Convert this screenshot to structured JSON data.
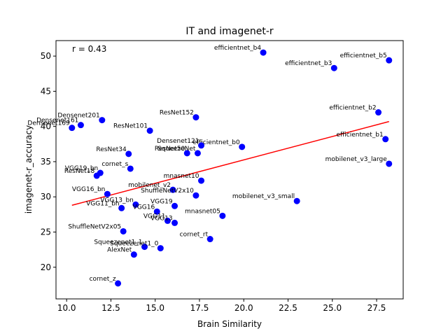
{
  "chart_data": {
    "type": "scatter",
    "title": "IT and imagenet-r",
    "xlabel": "Brain Similarity",
    "ylabel": "imagenet-r_accuracy",
    "annotation": "r = 0.43",
    "xlim": [
      9.4,
      29.0
    ],
    "ylim": [
      15.5,
      52.2
    ],
    "xticks": [
      10.0,
      12.5,
      15.0,
      17.5,
      20.0,
      22.5,
      25.0,
      27.5
    ],
    "yticks": [
      20,
      25,
      30,
      35,
      40,
      45,
      50
    ],
    "grid": false,
    "point_color": "#0000ff",
    "line_color": "#ff0000",
    "fit_line": {
      "x": [
        10.3,
        28.2
      ],
      "y": [
        28.8,
        40.7
      ]
    },
    "points": [
      {
        "label": "efficientnet_b4",
        "x": 21.1,
        "y": 50.5
      },
      {
        "label": "efficientnet_b5",
        "x": 28.2,
        "y": 49.4
      },
      {
        "label": "efficientnet_b3",
        "x": 25.1,
        "y": 48.3
      },
      {
        "label": "efficientnet_b2",
        "x": 27.6,
        "y": 42.0
      },
      {
        "label": "efficientnet_b1",
        "x": 28.0,
        "y": 38.2
      },
      {
        "label": "efficientnet_b0",
        "x": 19.9,
        "y": 37.1
      },
      {
        "label": "mobilenet_v3_large",
        "x": 28.2,
        "y": 34.7
      },
      {
        "label": "mobilenet_v3_small",
        "x": 23.0,
        "y": 29.4
      },
      {
        "label": "mnasnet05",
        "x": 18.8,
        "y": 27.3
      },
      {
        "label": "ResNet152",
        "x": 17.3,
        "y": 41.3
      },
      {
        "label": "Densenet201",
        "x": 12.0,
        "y": 40.9
      },
      {
        "label": "Densenet161",
        "x": 10.8,
        "y": 40.2
      },
      {
        "label": "Densenet169",
        "x": 10.3,
        "y": 39.8
      },
      {
        "label": "ResNet101",
        "x": 14.7,
        "y": 39.4
      },
      {
        "label": "Densenet121",
        "x": 17.6,
        "y": 37.3
      },
      {
        "label": "ResNet50",
        "x": 16.8,
        "y": 36.2
      },
      {
        "label": "SqueezeNet",
        "x": 17.4,
        "y": 36.2
      },
      {
        "label": "ResNet34",
        "x": 13.5,
        "y": 36.1
      },
      {
        "label": "cornet_s",
        "x": 13.6,
        "y": 34.0
      },
      {
        "label": "VGG19_bn",
        "x": 11.9,
        "y": 33.4
      },
      {
        "label": "ResNet18",
        "x": 11.7,
        "y": 33.0
      },
      {
        "label": "mnasnet10",
        "x": 17.6,
        "y": 32.3
      },
      {
        "label": "mobilenet_v2",
        "x": 16.0,
        "y": 31.0
      },
      {
        "label": "ShuffleNetV2x10",
        "x": 17.3,
        "y": 30.2
      },
      {
        "label": "VGG16_bn",
        "x": 12.3,
        "y": 30.4
      },
      {
        "label": "VGG13_bn",
        "x": 13.9,
        "y": 28.9
      },
      {
        "label": "VGG11_bn",
        "x": 13.1,
        "y": 28.4
      },
      {
        "label": "VGG19",
        "x": 16.1,
        "y": 28.7
      },
      {
        "label": "VGG16",
        "x": 15.1,
        "y": 27.9
      },
      {
        "label": "VGG11",
        "x": 15.7,
        "y": 26.6
      },
      {
        "label": "VGG13",
        "x": 16.1,
        "y": 26.3
      },
      {
        "label": "ShuffleNetV2x05",
        "x": 13.2,
        "y": 25.1
      },
      {
        "label": "cornet_rt",
        "x": 18.1,
        "y": 24.0
      },
      {
        "label": "Squeezenet1_1",
        "x": 14.4,
        "y": 22.9
      },
      {
        "label": "Squeezenet1_0",
        "x": 15.3,
        "y": 22.7
      },
      {
        "label": "AlexNet",
        "x": 13.8,
        "y": 21.8
      },
      {
        "label": "cornet_z",
        "x": 12.9,
        "y": 17.7
      }
    ]
  }
}
